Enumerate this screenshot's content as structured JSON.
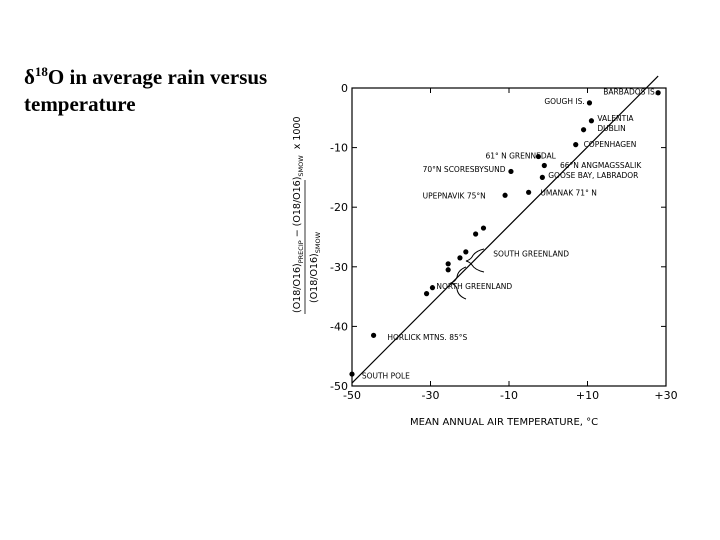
{
  "slide": {
    "title_delta": "δ",
    "title_sup": "18",
    "title_rest": "O in average rain versus temperature"
  },
  "chart_data": {
    "type": "scatter",
    "xlabel": "MEAN ANNUAL AIR TEMPERATURE, °C",
    "ylabel_top_part1": "(O18/O16)",
    "ylabel_top_sub1": "PRECIP",
    "ylabel_top_part2": " − (O18/O16)",
    "ylabel_top_sub2": "SMOW",
    "ylabel_top_suffix": "x 1000",
    "ylabel_bottom": "(O18/O16)",
    "ylabel_bottom_sub": "SMOW",
    "xlim": [
      -50,
      30
    ],
    "ylim": [
      -50,
      0
    ],
    "xticks": [
      -50,
      -30,
      -10,
      10,
      30
    ],
    "xtick_labels": [
      "-50",
      "-30",
      "-10",
      "+10",
      "+30"
    ],
    "yticks": [
      0,
      -10,
      -20,
      -30,
      -40,
      -50
    ],
    "ytick_labels": [
      "0",
      "-10",
      "-20",
      "-30",
      "-40",
      "-50"
    ],
    "fit_line": [
      [
        -50,
        -49.5
      ],
      [
        28,
        2
      ]
    ],
    "points": [
      {
        "x": 28,
        "y": -0.8
      },
      {
        "x": 10.5,
        "y": -2.5
      },
      {
        "x": 11,
        "y": -5.5
      },
      {
        "x": 9,
        "y": -7
      },
      {
        "x": 7,
        "y": -9.5
      },
      {
        "x": -2.5,
        "y": -11.5
      },
      {
        "x": -1,
        "y": -13
      },
      {
        "x": -9.5,
        "y": -14
      },
      {
        "x": -1.5,
        "y": -15
      },
      {
        "x": -5,
        "y": -17.5
      },
      {
        "x": -11,
        "y": -18
      },
      {
        "x": -16.5,
        "y": -23.5
      },
      {
        "x": -18.5,
        "y": -24.5
      },
      {
        "x": -21,
        "y": -27.5
      },
      {
        "x": -22.5,
        "y": -28.5
      },
      {
        "x": -25.5,
        "y": -29.5
      },
      {
        "x": -25.5,
        "y": -30.5
      },
      {
        "x": -29.5,
        "y": -33.5
      },
      {
        "x": -31,
        "y": -34.5
      },
      {
        "x": -44.5,
        "y": -41.5
      },
      {
        "x": -50,
        "y": -48
      }
    ],
    "annotations": [
      {
        "text": "BARBADOS IS.",
        "x": 14,
        "y": -0.6
      },
      {
        "text": "GOUGH IS.",
        "x": -1,
        "y": -2.2
      },
      {
        "text": "VALENTIA",
        "x": 12.5,
        "y": -5
      },
      {
        "text": "DUBLIN",
        "x": 12.5,
        "y": -6.7
      },
      {
        "text": "COPENHAGEN",
        "x": 9,
        "y": -9.4
      },
      {
        "text": "61° N GRENNEDAL",
        "x": -16,
        "y": -11.3
      },
      {
        "text": "70°N SCORESBYSUND",
        "x": -32,
        "y": -13.6
      },
      {
        "text": "66°N ANGMAGSSALIK",
        "x": 3,
        "y": -12.9
      },
      {
        "text": "GOOSE BAY, LABRADOR",
        "x": 0,
        "y": -14.6
      },
      {
        "text": "UMANAK 71° N",
        "x": -2,
        "y": -17.5
      },
      {
        "text": "UPEPNAVIK 75°N",
        "x": -32,
        "y": -18
      },
      {
        "text": "SOUTH GREENLAND",
        "x": -14,
        "y": -27.8
      },
      {
        "text": "NORTH GREENLAND",
        "x": -28.5,
        "y": -33.2
      },
      {
        "text": "HORLICK MTNS. 85°S",
        "x": -41,
        "y": -41.8
      },
      {
        "text": "SOUTH POLE",
        "x": -47.5,
        "y": -48.2
      }
    ]
  }
}
